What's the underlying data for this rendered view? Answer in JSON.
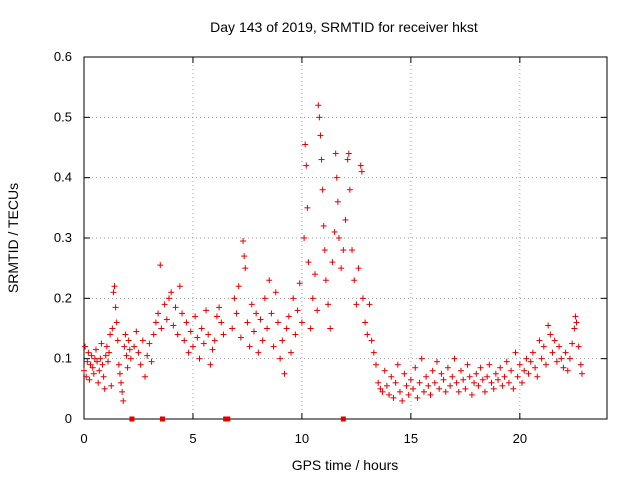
{
  "chart_data": {
    "type": "scatter",
    "title": "Day 143 of 2019, SRMTID for receiver hkst",
    "xlabel": "GPS time / hours",
    "ylabel": "SRMTID / TECUs",
    "xlim": [
      0,
      24
    ],
    "ylim": [
      0,
      0.6
    ],
    "xticks": [
      0,
      5,
      10,
      15,
      20
    ],
    "xtick_labels": [
      "0",
      "5",
      "10",
      "15",
      "20"
    ],
    "yticks": [
      0,
      0.1,
      0.2,
      0.3,
      0.4,
      0.5,
      0.6
    ],
    "ytick_labels": [
      "0",
      "0.1",
      "0.2",
      "0.3",
      "0.4",
      "0.5",
      "0.6"
    ],
    "grid": true,
    "marker": "plus",
    "color": "#e00000",
    "zero_value_markers_x": [
      2.2,
      3.6,
      6.5,
      6.6,
      11.9
    ],
    "series": [
      {
        "name": "SRMTID",
        "points": [
          [
            0.0,
            0.08
          ],
          [
            0.05,
            0.12
          ],
          [
            0.1,
            0.07
          ],
          [
            0.15,
            0.095
          ],
          [
            0.2,
            0.11
          ],
          [
            0.25,
            0.065
          ],
          [
            0.3,
            0.09
          ],
          [
            0.35,
            0.105
          ],
          [
            0.4,
            0.085
          ],
          [
            0.45,
            0.075
          ],
          [
            0.5,
            0.1
          ],
          [
            0.55,
            0.115
          ],
          [
            0.6,
            0.095
          ],
          [
            0.65,
            0.06
          ],
          [
            0.7,
            0.08
          ],
          [
            0.75,
            0.1
          ],
          [
            0.8,
            0.125
          ],
          [
            0.85,
            0.09
          ],
          [
            0.9,
            0.07
          ],
          [
            0.95,
            0.05
          ],
          [
            1.0,
            0.105
          ],
          [
            1.05,
            0.12
          ],
          [
            1.1,
            0.095
          ],
          [
            1.15,
            0.11
          ],
          [
            1.2,
            0.14
          ],
          [
            1.25,
            0.055
          ],
          [
            1.3,
            0.15
          ],
          [
            1.35,
            0.21
          ],
          [
            1.4,
            0.22
          ],
          [
            1.45,
            0.185
          ],
          [
            1.5,
            0.16
          ],
          [
            1.55,
            0.13
          ],
          [
            1.6,
            0.09
          ],
          [
            1.65,
            0.075
          ],
          [
            1.7,
            0.06
          ],
          [
            1.75,
            0.045
          ],
          [
            1.8,
            0.03
          ],
          [
            1.85,
            0.12
          ],
          [
            1.9,
            0.14
          ],
          [
            1.95,
            0.105
          ],
          [
            2.0,
            0.085
          ],
          [
            2.05,
            0.13
          ],
          [
            2.1,
            0.115
          ],
          [
            2.15,
            0.1
          ],
          [
            2.3,
            0.12
          ],
          [
            2.4,
            0.145
          ],
          [
            2.5,
            0.11
          ],
          [
            2.6,
            0.09
          ],
          [
            2.7,
            0.13
          ],
          [
            2.8,
            0.07
          ],
          [
            2.9,
            0.105
          ],
          [
            3.0,
            0.125
          ],
          [
            3.1,
            0.095
          ],
          [
            3.2,
            0.14
          ],
          [
            3.3,
            0.16
          ],
          [
            3.4,
            0.175
          ],
          [
            3.5,
            0.255
          ],
          [
            3.55,
            0.15
          ],
          [
            3.7,
            0.19
          ],
          [
            3.8,
            0.165
          ],
          [
            3.9,
            0.2
          ],
          [
            4.0,
            0.21
          ],
          [
            4.1,
            0.155
          ],
          [
            4.2,
            0.185
          ],
          [
            4.3,
            0.14
          ],
          [
            4.4,
            0.22
          ],
          [
            4.5,
            0.175
          ],
          [
            4.6,
            0.13
          ],
          [
            4.7,
            0.16
          ],
          [
            4.8,
            0.11
          ],
          [
            4.9,
            0.145
          ],
          [
            5.0,
            0.12
          ],
          [
            5.1,
            0.17
          ],
          [
            5.2,
            0.135
          ],
          [
            5.3,
            0.1
          ],
          [
            5.4,
            0.15
          ],
          [
            5.5,
            0.125
          ],
          [
            5.6,
            0.18
          ],
          [
            5.7,
            0.14
          ],
          [
            5.8,
            0.09
          ],
          [
            5.9,
            0.115
          ],
          [
            6.0,
            0.13
          ],
          [
            6.1,
            0.17
          ],
          [
            6.2,
            0.185
          ],
          [
            6.3,
            0.16
          ],
          [
            6.4,
            0.14
          ],
          [
            6.8,
            0.15
          ],
          [
            6.9,
            0.2
          ],
          [
            7.0,
            0.175
          ],
          [
            7.1,
            0.22
          ],
          [
            7.2,
            0.135
          ],
          [
            7.3,
            0.295
          ],
          [
            7.35,
            0.27
          ],
          [
            7.4,
            0.25
          ],
          [
            7.5,
            0.16
          ],
          [
            7.6,
            0.12
          ],
          [
            7.7,
            0.19
          ],
          [
            7.8,
            0.145
          ],
          [
            7.9,
            0.175
          ],
          [
            8.0,
            0.11
          ],
          [
            8.1,
            0.165
          ],
          [
            8.2,
            0.13
          ],
          [
            8.3,
            0.2
          ],
          [
            8.4,
            0.15
          ],
          [
            8.5,
            0.23
          ],
          [
            8.6,
            0.175
          ],
          [
            8.7,
            0.12
          ],
          [
            8.8,
            0.21
          ],
          [
            8.9,
            0.16
          ],
          [
            9.0,
            0.1
          ],
          [
            9.1,
            0.13
          ],
          [
            9.2,
            0.075
          ],
          [
            9.3,
            0.15
          ],
          [
            9.4,
            0.17
          ],
          [
            9.5,
            0.11
          ],
          [
            9.6,
            0.2
          ],
          [
            9.7,
            0.14
          ],
          [
            9.8,
            0.18
          ],
          [
            9.9,
            0.225
          ],
          [
            10.0,
            0.16
          ],
          [
            10.1,
            0.3
          ],
          [
            10.15,
            0.455
          ],
          [
            10.2,
            0.42
          ],
          [
            10.25,
            0.35
          ],
          [
            10.3,
            0.26
          ],
          [
            10.4,
            0.15
          ],
          [
            10.5,
            0.2
          ],
          [
            10.6,
            0.24
          ],
          [
            10.7,
            0.18
          ],
          [
            10.75,
            0.52
          ],
          [
            10.8,
            0.5
          ],
          [
            10.85,
            0.47
          ],
          [
            10.9,
            0.43
          ],
          [
            10.95,
            0.38
          ],
          [
            11.0,
            0.32
          ],
          [
            11.05,
            0.28
          ],
          [
            11.1,
            0.23
          ],
          [
            11.2,
            0.19
          ],
          [
            11.3,
            0.15
          ],
          [
            11.4,
            0.26
          ],
          [
            11.5,
            0.31
          ],
          [
            11.55,
            0.44
          ],
          [
            11.6,
            0.4
          ],
          [
            11.65,
            0.36
          ],
          [
            11.7,
            0.3
          ],
          [
            11.8,
            0.25
          ],
          [
            11.9,
            0.28
          ],
          [
            12.0,
            0.33
          ],
          [
            12.1,
            0.43
          ],
          [
            12.15,
            0.44
          ],
          [
            12.2,
            0.38
          ],
          [
            12.3,
            0.28
          ],
          [
            12.4,
            0.23
          ],
          [
            12.5,
            0.19
          ],
          [
            12.6,
            0.25
          ],
          [
            12.7,
            0.42
          ],
          [
            12.75,
            0.41
          ],
          [
            12.8,
            0.2
          ],
          [
            12.9,
            0.16
          ],
          [
            13.0,
            0.14
          ],
          [
            13.1,
            0.19
          ],
          [
            13.2,
            0.13
          ],
          [
            13.3,
            0.11
          ],
          [
            13.4,
            0.09
          ],
          [
            13.5,
            0.06
          ],
          [
            13.6,
            0.05
          ],
          [
            13.7,
            0.045
          ],
          [
            13.8,
            0.08
          ],
          [
            13.9,
            0.055
          ],
          [
            14.0,
            0.04
          ],
          [
            14.1,
            0.07
          ],
          [
            14.2,
            0.035
          ],
          [
            14.3,
            0.06
          ],
          [
            14.4,
            0.09
          ],
          [
            14.5,
            0.045
          ],
          [
            14.6,
            0.03
          ],
          [
            14.7,
            0.075
          ],
          [
            14.8,
            0.055
          ],
          [
            14.9,
            0.04
          ],
          [
            15.0,
            0.065
          ],
          [
            15.1,
            0.05
          ],
          [
            15.2,
            0.085
          ],
          [
            15.3,
            0.035
          ],
          [
            15.4,
            0.06
          ],
          [
            15.5,
            0.1
          ],
          [
            15.6,
            0.045
          ],
          [
            15.7,
            0.07
          ],
          [
            15.8,
            0.055
          ],
          [
            15.9,
            0.04
          ],
          [
            16.0,
            0.08
          ],
          [
            16.1,
            0.06
          ],
          [
            16.2,
            0.095
          ],
          [
            16.3,
            0.05
          ],
          [
            16.4,
            0.075
          ],
          [
            16.5,
            0.065
          ],
          [
            16.6,
            0.045
          ],
          [
            16.7,
            0.085
          ],
          [
            16.8,
            0.055
          ],
          [
            16.9,
            0.07
          ],
          [
            17.0,
            0.1
          ],
          [
            17.1,
            0.06
          ],
          [
            17.2,
            0.045
          ],
          [
            17.3,
            0.08
          ],
          [
            17.4,
            0.065
          ],
          [
            17.5,
            0.05
          ],
          [
            17.6,
            0.09
          ],
          [
            17.7,
            0.07
          ],
          [
            17.8,
            0.04
          ],
          [
            17.9,
            0.06
          ],
          [
            18.0,
            0.075
          ],
          [
            18.1,
            0.055
          ],
          [
            18.2,
            0.085
          ],
          [
            18.3,
            0.065
          ],
          [
            18.4,
            0.045
          ],
          [
            18.5,
            0.07
          ],
          [
            18.6,
            0.09
          ],
          [
            18.7,
            0.06
          ],
          [
            18.8,
            0.05
          ],
          [
            18.9,
            0.075
          ],
          [
            19.0,
            0.065
          ],
          [
            19.1,
            0.085
          ],
          [
            19.2,
            0.055
          ],
          [
            19.3,
            0.07
          ],
          [
            19.4,
            0.095
          ],
          [
            19.5,
            0.06
          ],
          [
            19.6,
            0.08
          ],
          [
            19.7,
            0.05
          ],
          [
            19.8,
            0.11
          ],
          [
            19.9,
            0.07
          ],
          [
            20.0,
            0.09
          ],
          [
            20.1,
            0.06
          ],
          [
            20.2,
            0.08
          ],
          [
            20.3,
            0.1
          ],
          [
            20.4,
            0.075
          ],
          [
            20.5,
            0.095
          ],
          [
            20.6,
            0.11
          ],
          [
            20.7,
            0.085
          ],
          [
            20.8,
            0.07
          ],
          [
            20.9,
            0.13
          ],
          [
            21.0,
            0.1
          ],
          [
            21.1,
            0.12
          ],
          [
            21.2,
            0.09
          ],
          [
            21.3,
            0.155
          ],
          [
            21.4,
            0.14
          ],
          [
            21.5,
            0.11
          ],
          [
            21.6,
            0.13
          ],
          [
            21.7,
            0.095
          ],
          [
            21.8,
            0.12
          ],
          [
            21.9,
            0.1
          ],
          [
            22.0,
            0.085
          ],
          [
            22.1,
            0.11
          ],
          [
            22.2,
            0.08
          ],
          [
            22.3,
            0.1
          ],
          [
            22.4,
            0.125
          ],
          [
            22.5,
            0.15
          ],
          [
            22.55,
            0.17
          ],
          [
            22.6,
            0.16
          ],
          [
            22.7,
            0.12
          ],
          [
            22.8,
            0.09
          ],
          [
            22.85,
            0.075
          ]
        ]
      }
    ]
  }
}
